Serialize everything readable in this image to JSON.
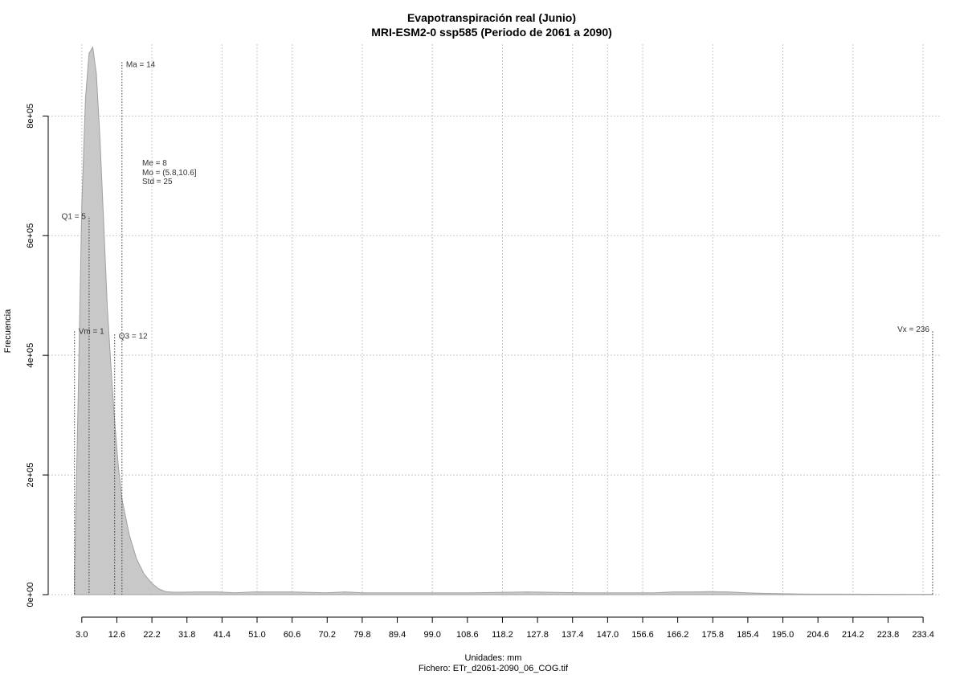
{
  "chart_data": {
    "type": "area",
    "title": "Evapotranspiración real (Junio)",
    "subtitle": "MRI-ESM2-0 ssp585 (Periodo de 2061 a 2090)",
    "xlabel": "Unidades: mm",
    "ylabel": "Frecuencia",
    "caption": "Fichero: ETr_d2061-2090_06_COG.tif",
    "xlim": [
      -6.2,
      238
    ],
    "ylim": [
      0,
      920000
    ],
    "x_ticks": [
      "3.0",
      "12.6",
      "22.2",
      "31.8",
      "41.4",
      "51.0",
      "60.6",
      "70.2",
      "79.8",
      "89.4",
      "99.0",
      "108.6",
      "118.2",
      "127.8",
      "137.4",
      "147.0",
      "156.6",
      "166.2",
      "175.8",
      "185.4",
      "195.0",
      "204.6",
      "214.2",
      "223.8",
      "233.4"
    ],
    "y_ticks": [
      {
        "value": 0,
        "label": "0e+00"
      },
      {
        "value": 200000,
        "label": "2e+05"
      },
      {
        "value": 400000,
        "label": "4e+05"
      },
      {
        "value": 600000,
        "label": "6e+05"
      },
      {
        "value": 800000,
        "label": "8e+05"
      }
    ],
    "grid": true,
    "fill_color": "#c8c8c8",
    "line_color": "#a0a0a0",
    "series": [
      {
        "x": [
          1,
          2,
          3,
          4,
          5,
          6,
          7,
          8,
          9,
          10,
          11,
          12,
          13,
          14,
          16,
          18,
          20,
          22,
          24,
          26,
          28,
          30,
          35,
          40,
          45,
          50,
          60,
          70,
          75,
          80,
          90,
          100,
          110,
          120,
          125,
          130,
          140,
          150,
          160,
          165,
          170,
          175,
          180,
          185,
          190,
          195,
          200,
          210,
          220,
          230,
          236
        ],
        "y": [
          30000,
          330000,
          650000,
          830000,
          905000,
          915000,
          870000,
          760000,
          620000,
          480000,
          380000,
          290000,
          215000,
          160000,
          100000,
          60000,
          35000,
          20000,
          10000,
          5000,
          4000,
          4000,
          4500,
          4500,
          3000,
          4500,
          4500,
          3000,
          4500,
          3000,
          3000,
          3000,
          3000,
          4000,
          4500,
          4000,
          3000,
          3000,
          3000,
          4500,
          4500,
          5000,
          4500,
          3000,
          2000,
          1500,
          1000,
          800,
          700,
          600,
          500
        ]
      }
    ],
    "annotations": [
      {
        "label": "Vm = 1",
        "x": 1,
        "y_top": 440000,
        "side": "right",
        "text_y": 440000
      },
      {
        "label": "Q1 = 5",
        "x": 5,
        "y_top": 630000,
        "side": "left",
        "text_y": 632000
      },
      {
        "label": "Q3 = 12",
        "x": 12,
        "y_top": 435000,
        "side": "right",
        "text_y": 432000
      },
      {
        "label": "Ma = 14",
        "x": 14,
        "y_top": 890000,
        "side": "right",
        "text_y": 886000
      },
      {
        "label": "Vx = 236",
        "x": 236,
        "y_top": 440000,
        "side": "left",
        "text_y": 443000
      }
    ],
    "stats": [
      "Me = 8",
      "Mo = (5.8,10.6]",
      "Std = 25"
    ]
  }
}
